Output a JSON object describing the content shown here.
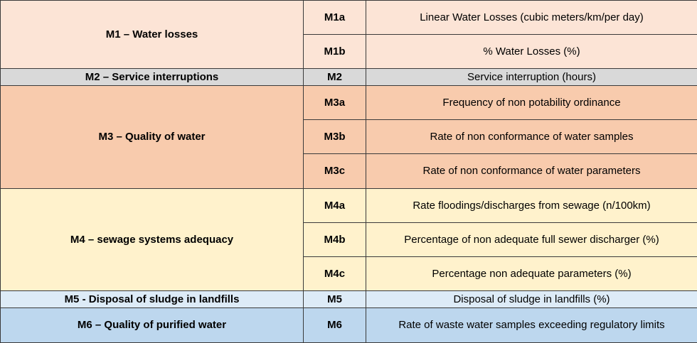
{
  "colors": {
    "m1": "#fce4d6",
    "m2": "#d9d9d9",
    "m3": "#f8cbad",
    "m4": "#fff2cc",
    "m5": "#ddebf7",
    "m6": "#bdd7ee",
    "border": "#3a3a3a"
  },
  "groups": [
    {
      "title": "M1 – Water losses",
      "rows": [
        {
          "code": "M1a",
          "description": "Linear Water Losses (cubic meters/km/per day)"
        },
        {
          "code": "M1b",
          "description": "% Water Losses (%)"
        }
      ]
    },
    {
      "title": "M2 – Service interruptions",
      "rows": [
        {
          "code": "M2",
          "description": "Service interruption (hours)"
        }
      ]
    },
    {
      "title": "M3 – Quality of water",
      "rows": [
        {
          "code": "M3a",
          "description": "Frequency of non potability ordinance"
        },
        {
          "code": "M3b",
          "description": "Rate of non conformance of water samples"
        },
        {
          "code": "M3c",
          "description": "Rate of non conformance of water parameters"
        }
      ]
    },
    {
      "title": "M4 – sewage systems adequacy",
      "rows": [
        {
          "code": "M4a",
          "description": "Rate floodings/discharges from sewage (n/100km)"
        },
        {
          "code": "M4b",
          "description": "Percentage of non adequate full sewer discharger (%)"
        },
        {
          "code": "M4c",
          "description": "Percentage non adequate parameters (%)"
        }
      ]
    },
    {
      "title": "M5 - Disposal of sludge in landfills",
      "rows": [
        {
          "code": "M5",
          "description": "Disposal of sludge in landfills (%)"
        }
      ]
    },
    {
      "title": "M6 – Quality of purified water",
      "rows": [
        {
          "code": "M6",
          "description": "Rate of waste water samples exceeding regulatory limits"
        }
      ]
    }
  ]
}
